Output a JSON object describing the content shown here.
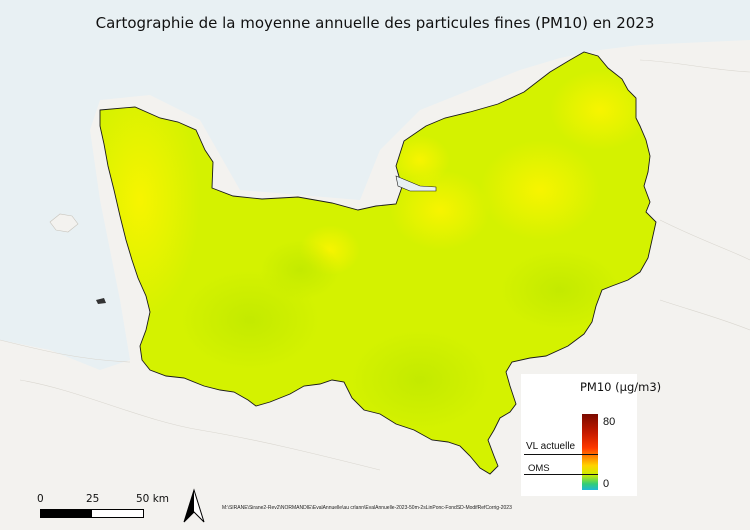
{
  "map": {
    "title": "Cartographie de la moyenne annuelle des particules fines (PM10) en 2023",
    "colors": {
      "sea": "#e8f0f3",
      "land": "#f3f2ef",
      "region_base": "#d4f200",
      "highlight": "#f4f200",
      "border": "#1a1a1a"
    }
  },
  "legend": {
    "title": "PM10 (µg/m3)",
    "max_label": "80",
    "min_label": "0",
    "vl_label": "VL actuelle",
    "oms_label": "OMS"
  },
  "scale": {
    "label_0": "0",
    "label_25": "25",
    "label_50": "50 km"
  },
  "footer": {
    "north_arrow": "north-arrow-icon",
    "source_path": "M:\\SIRANE\\Sirane2-Rev2\\NORMANDIE\\EvalAnnuelle\\au crlann\\EvalAnnuelle-2023-50m-2sLinPonc-FondSD-ModifRefCorrig-2023"
  }
}
